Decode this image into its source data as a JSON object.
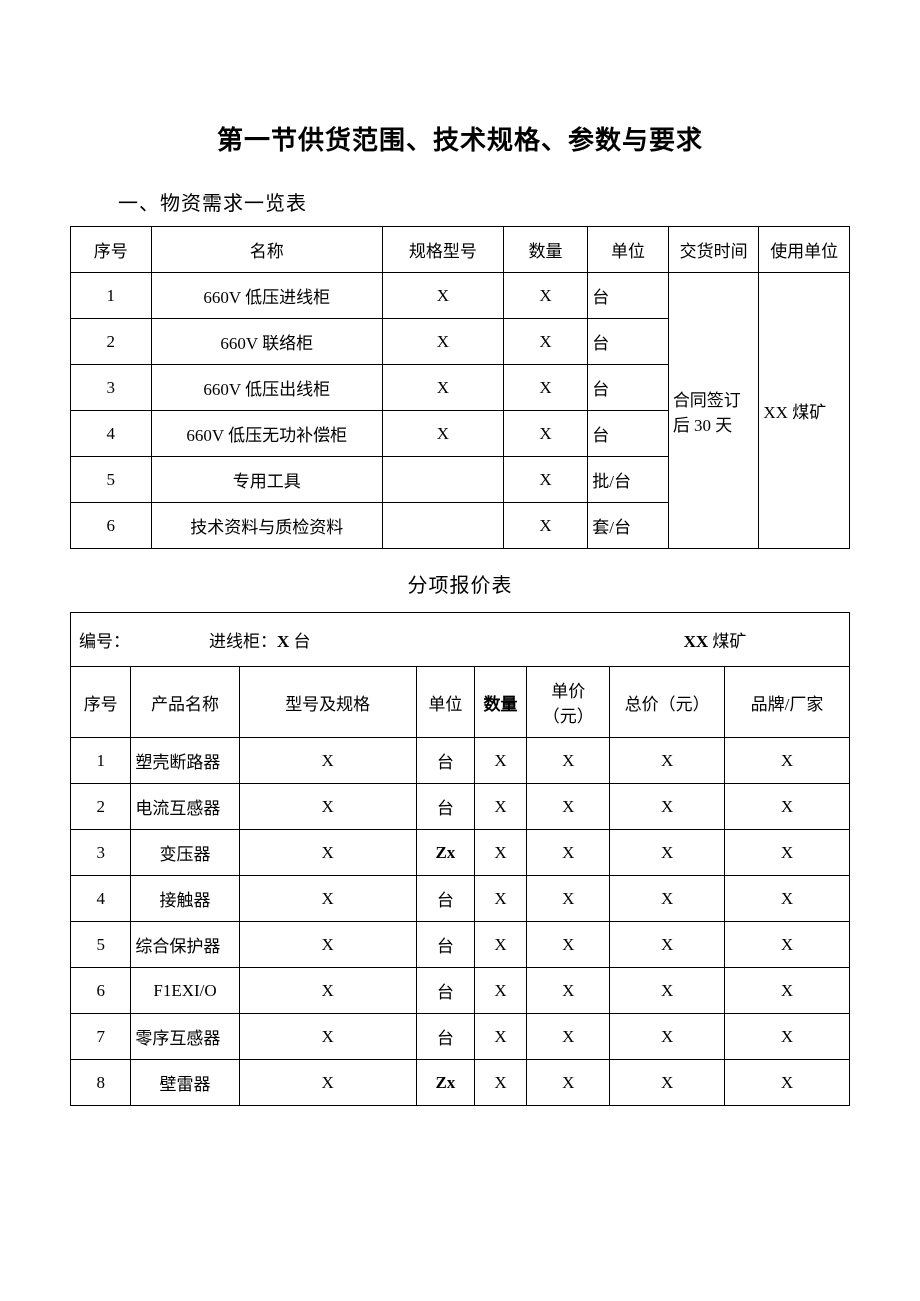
{
  "title": "第一节供货范围、技术规格、参数与要求",
  "section1_title": "一、物资需求一览表",
  "table1": {
    "headers": [
      "序号",
      "名称",
      "规格型号",
      "数量",
      "单位",
      "交货时间",
      "使用单位"
    ],
    "delivery_time": "合同签订后 30 天",
    "use_unit": "XX 煤矿",
    "rows": [
      {
        "no": "1",
        "name": "660V 低压进线柜",
        "spec": "X",
        "qty": "X",
        "unit": "台"
      },
      {
        "no": "2",
        "name": "660V 联络柜",
        "spec": "X",
        "qty": "X",
        "unit": "台"
      },
      {
        "no": "3",
        "name": "660V 低压出线柜",
        "spec": "X",
        "qty": "X",
        "unit": "台"
      },
      {
        "no": "4",
        "name": "660V 低压无功补偿柜",
        "spec": "X",
        "qty": "X",
        "unit": "台"
      },
      {
        "no": "5",
        "name": "专用工具",
        "spec": "",
        "qty": "X",
        "unit": "批/台"
      },
      {
        "no": "6",
        "name": "技术资料与质检资料",
        "spec": "",
        "qty": "X",
        "unit": "套/台"
      }
    ]
  },
  "mid_title": "分项报价表",
  "table2": {
    "header_line": {
      "label1": "编号：",
      "label2_pre": "进线柜：",
      "label2_bold": "X",
      "label2_suf": " 台",
      "label3_bold": "XX",
      "label3_suf": " 煤矿"
    },
    "headers": [
      "序号",
      "产品名称",
      "型号及规格",
      "单位",
      "数量",
      "单价（元）",
      "总价（元）",
      "品牌/厂家"
    ],
    "rows": [
      {
        "no": "1",
        "name": "塑壳断路器",
        "spec": "X",
        "unit": "台",
        "qty": "X",
        "price": "X",
        "total": "X",
        "brand": "X"
      },
      {
        "no": "2",
        "name": "电流互感器",
        "spec": "X",
        "unit": "台",
        "qty": "X",
        "price": "X",
        "total": "X",
        "brand": "X"
      },
      {
        "no": "3",
        "name": "变压器",
        "spec": "X",
        "unit": "Zx",
        "qty": "X",
        "price": "X",
        "total": "X",
        "brand": "X"
      },
      {
        "no": "4",
        "name": "接触器",
        "spec": "X",
        "unit": "台",
        "qty": "X",
        "price": "X",
        "total": "X",
        "brand": "X"
      },
      {
        "no": "5",
        "name": "综合保护器",
        "spec": "X",
        "unit": "台",
        "qty": "X",
        "price": "X",
        "total": "X",
        "brand": "X"
      },
      {
        "no": "6",
        "name": "F1EXI/O",
        "spec": "X",
        "unit": "台",
        "qty": "X",
        "price": "X",
        "total": "X",
        "brand": "X"
      },
      {
        "no": "7",
        "name": "零序互感器",
        "spec": "X",
        "unit": "台",
        "qty": "X",
        "price": "X",
        "total": "X",
        "brand": "X"
      },
      {
        "no": "8",
        "name": "壁雷器",
        "spec": "X",
        "unit": "Zx",
        "qty": "X",
        "price": "X",
        "total": "X",
        "brand": "X"
      }
    ]
  }
}
